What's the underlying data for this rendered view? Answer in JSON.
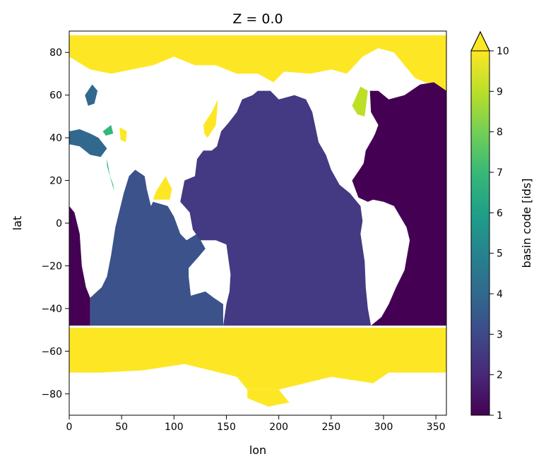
{
  "chart_data": {
    "type": "heatmap",
    "title": "Z = 0.0",
    "xlabel": "lon",
    "ylabel": "lat",
    "xlim": [
      0,
      360
    ],
    "ylim": [
      -90,
      90
    ],
    "xticks": [
      {
        "value": 0,
        "label": "0"
      },
      {
        "value": 50,
        "label": "50"
      },
      {
        "value": 100,
        "label": "100"
      },
      {
        "value": 150,
        "label": "150"
      },
      {
        "value": 200,
        "label": "200"
      },
      {
        "value": 250,
        "label": "250"
      },
      {
        "value": 300,
        "label": "300"
      },
      {
        "value": 350,
        "label": "350"
      }
    ],
    "yticks": [
      {
        "value": 80,
        "label": "80"
      },
      {
        "value": 60,
        "label": "60"
      },
      {
        "value": 40,
        "label": "40"
      },
      {
        "value": 20,
        "label": "20"
      },
      {
        "value": 0,
        "label": "0"
      },
      {
        "value": -20,
        "label": "−20"
      },
      {
        "value": -40,
        "label": "−40"
      },
      {
        "value": -60,
        "label": "−60"
      },
      {
        "value": -80,
        "label": "−80"
      }
    ],
    "colorbar": {
      "label": "basin code [ids]",
      "vmin": 1,
      "vmax": 10,
      "extend": "max",
      "colormap": "viridis",
      "ticks": [
        {
          "value": 1,
          "label": "1"
        },
        {
          "value": 2,
          "label": "2"
        },
        {
          "value": 3,
          "label": "3"
        },
        {
          "value": 4,
          "label": "4"
        },
        {
          "value": 5,
          "label": "5"
        },
        {
          "value": 6,
          "label": "6"
        },
        {
          "value": 7,
          "label": "7"
        },
        {
          "value": 8,
          "label": "8"
        },
        {
          "value": 9,
          "label": "9"
        },
        {
          "value": 10,
          "label": "10"
        }
      ]
    },
    "basins": [
      {
        "code": 10,
        "color": "#fde725",
        "regions": [
          [
            [
              0,
              -49
            ],
            [
              360,
              -49
            ],
            [
              360,
              -70
            ],
            [
              305,
              -70
            ],
            [
              290,
              -75
            ],
            [
              250,
              -72
            ],
            [
              200,
              -78
            ],
            [
              170,
              -78
            ],
            [
              160,
              -72
            ],
            [
              110,
              -66
            ],
            [
              70,
              -69
            ],
            [
              30,
              -70
            ],
            [
              0,
              -70
            ]
          ],
          [
            [
              0,
              88
            ],
            [
              360,
              88
            ],
            [
              360,
              62
            ],
            [
              330,
              68
            ],
            [
              310,
              80
            ],
            [
              295,
              82
            ],
            [
              280,
              78
            ],
            [
              265,
              70
            ],
            [
              250,
              72
            ],
            [
              230,
              70
            ],
            [
              205,
              71
            ],
            [
              195,
              66
            ],
            [
              180,
              70
            ],
            [
              160,
              70
            ],
            [
              140,
              74
            ],
            [
              120,
              74
            ],
            [
              100,
              78
            ],
            [
              80,
              74
            ],
            [
              60,
              72
            ],
            [
              40,
              70
            ],
            [
              20,
              72
            ],
            [
              0,
              78
            ]
          ],
          [
            [
              83,
              15
            ],
            [
              92,
              22
            ],
            [
              98,
              16
            ],
            [
              96,
              11
            ],
            [
              80,
              11
            ]
          ],
          [
            [
              128,
              46
            ],
            [
              136,
              52
            ],
            [
              142,
              58
            ],
            [
              140,
              46
            ],
            [
              132,
              40
            ],
            [
              129,
              42
            ]
          ],
          [
            [
              48,
              45
            ],
            [
              55,
              43
            ],
            [
              54,
              38
            ],
            [
              49,
              39
            ]
          ],
          [
            [
              170,
              -78
            ],
            [
              200,
              -78
            ],
            [
              210,
              -84
            ],
            [
              190,
              -86
            ],
            [
              170,
              -82
            ]
          ]
        ]
      },
      {
        "code": 9,
        "color": "#bddf26",
        "regions": [
          [
            [
              270,
              55
            ],
            [
              278,
              64
            ],
            [
              285,
              62
            ],
            [
              282,
              50
            ],
            [
              275,
              51
            ]
          ]
        ]
      },
      {
        "code": 7,
        "color": "#35b779",
        "regions": [
          [
            [
              32,
              43
            ],
            [
              40,
              46
            ],
            [
              42,
              42
            ],
            [
              35,
              41
            ]
          ],
          [
            [
              36,
              30
            ],
            [
              39,
              22
            ],
            [
              42,
              18
            ],
            [
              43,
              15
            ],
            [
              40,
              20
            ],
            [
              36,
              27
            ]
          ]
        ]
      },
      {
        "code": 4,
        "color": "#31688e",
        "regions": [
          [
            [
              0,
              43
            ],
            [
              10,
              44
            ],
            [
              20,
              42
            ],
            [
              28,
              40
            ],
            [
              36,
              35
            ],
            [
              30,
              31
            ],
            [
              20,
              32
            ],
            [
              10,
              36
            ],
            [
              0,
              37
            ]
          ],
          [
            [
              15,
              60
            ],
            [
              22,
              65
            ],
            [
              27,
              62
            ],
            [
              24,
              56
            ],
            [
              18,
              55
            ]
          ]
        ]
      },
      {
        "code": 3,
        "color": "#3b528b",
        "regions": [
          [
            [
              20,
              -48
            ],
            [
              147,
              -48
            ],
            [
              147,
              -38
            ],
            [
              138,
              -35
            ],
            [
              130,
              -32
            ],
            [
              116,
              -34
            ],
            [
              114,
              -25
            ],
            [
              114,
              -21
            ],
            [
              123,
              -16
            ],
            [
              130,
              -12
            ],
            [
              122,
              -5
            ],
            [
              112,
              -8
            ],
            [
              106,
              -5
            ],
            [
              100,
              3
            ],
            [
              94,
              8
            ],
            [
              80,
              10
            ],
            [
              78,
              8
            ],
            [
              74,
              16
            ],
            [
              72,
              22
            ],
            [
              63,
              25
            ],
            [
              57,
              22
            ],
            [
              52,
              14
            ],
            [
              50,
              10
            ],
            [
              44,
              -2
            ],
            [
              40,
              -15
            ],
            [
              36,
              -25
            ],
            [
              31,
              -30
            ],
            [
              20,
              -35
            ]
          ]
        ]
      },
      {
        "code": 2,
        "color": "#443983",
        "regions": [
          [
            [
              147,
              -48
            ],
            [
              288,
              -48
            ],
            [
              285,
              -40
            ],
            [
              283,
              -30
            ],
            [
              282,
              -18
            ],
            [
              278,
              -5
            ],
            [
              280,
              1
            ],
            [
              278,
              8
            ],
            [
              268,
              14
            ],
            [
              258,
              18
            ],
            [
              250,
              25
            ],
            [
              245,
              32
            ],
            [
              238,
              38
            ],
            [
              235,
              45
            ],
            [
              232,
              52
            ],
            [
              226,
              58
            ],
            [
              215,
              60
            ],
            [
              200,
              58
            ],
            [
              192,
              62
            ],
            [
              180,
              62
            ],
            [
              175,
              60
            ],
            [
              165,
              58
            ],
            [
              160,
              52
            ],
            [
              152,
              47
            ],
            [
              145,
              43
            ],
            [
              141,
              36
            ],
            [
              136,
              34
            ],
            [
              128,
              34
            ],
            [
              122,
              30
            ],
            [
              120,
              22
            ],
            [
              110,
              20
            ],
            [
              106,
              10
            ],
            [
              115,
              5
            ],
            [
              118,
              -3
            ],
            [
              125,
              -8
            ],
            [
              140,
              -8
            ],
            [
              150,
              -10
            ],
            [
              154,
              -24
            ],
            [
              153,
              -32
            ],
            [
              150,
              -38
            ]
          ]
        ]
      },
      {
        "code": 1,
        "color": "#440154",
        "regions": [
          [
            [
              288,
              -48
            ],
            [
              360,
              -48
            ],
            [
              360,
              62
            ],
            [
              348,
              66
            ],
            [
              335,
              65
            ],
            [
              320,
              60
            ],
            [
              305,
              58
            ],
            [
              295,
              62
            ],
            [
              287,
              62
            ],
            [
              288,
              52
            ],
            [
              295,
              46
            ],
            [
              292,
              42
            ],
            [
              290,
              40
            ],
            [
              283,
              34
            ],
            [
              281,
              28
            ],
            [
              277,
              25
            ],
            [
              270,
              20
            ],
            [
              276,
              12
            ],
            [
              285,
              10
            ],
            [
              290,
              11
            ],
            [
              300,
              10
            ],
            [
              310,
              8
            ],
            [
              322,
              -2
            ],
            [
              325,
              -8
            ],
            [
              320,
              -22
            ],
            [
              312,
              -30
            ],
            [
              305,
              -38
            ],
            [
              298,
              -44
            ]
          ],
          [
            [
              0,
              -48
            ],
            [
              20,
              -48
            ],
            [
              20,
              -35
            ],
            [
              16,
              -30
            ],
            [
              12,
              -20
            ],
            [
              10,
              -5
            ],
            [
              5,
              5
            ],
            [
              0,
              8
            ]
          ]
        ]
      }
    ]
  }
}
